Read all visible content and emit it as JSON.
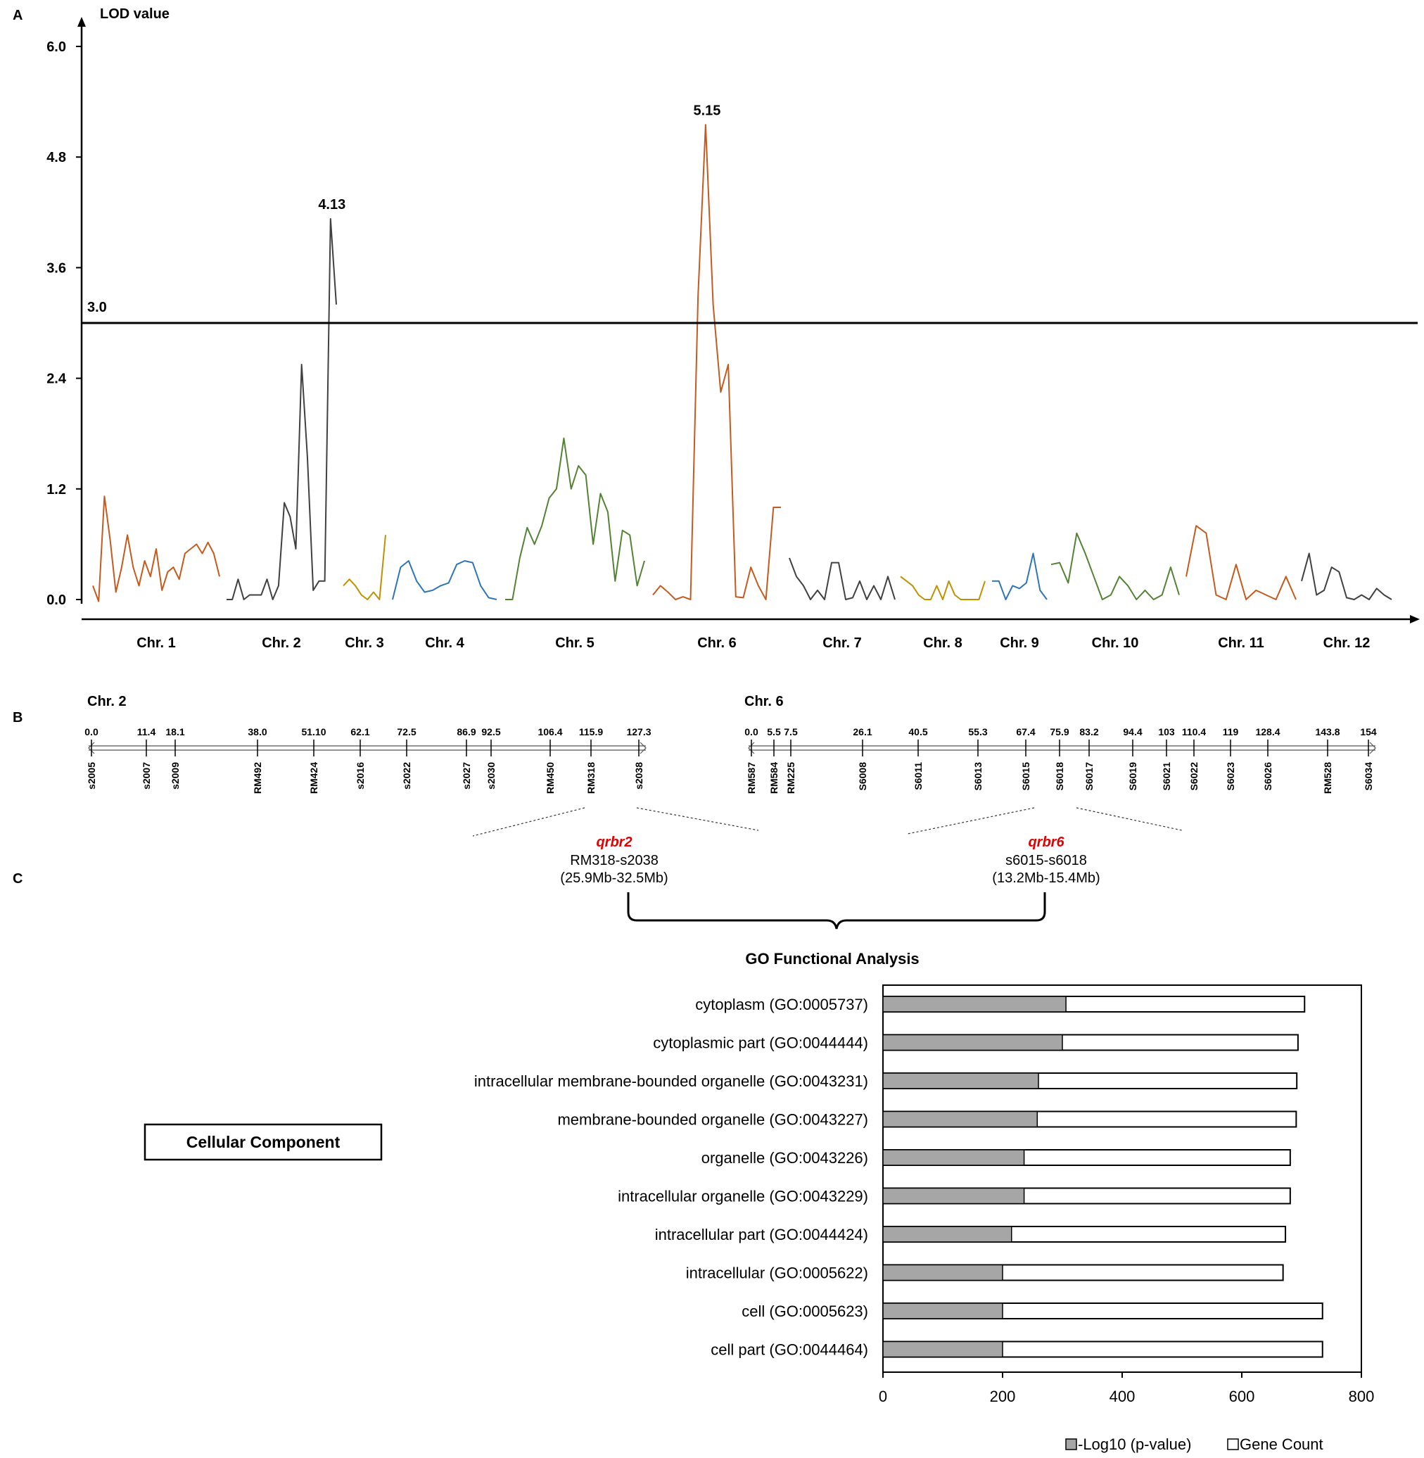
{
  "colors": {
    "orange": "#c55a1e",
    "grey": "#404040",
    "gold": "#bf9000",
    "blue": "#2e75b6",
    "green": "#548235",
    "red": "#e00000",
    "bar_fill": "#a6a6a6"
  },
  "panel_labels": {
    "a": "A",
    "b": "B",
    "c": "C"
  },
  "chart_data": [
    {
      "type": "line",
      "title": "",
      "ylabel": "LOD value",
      "ylim": [
        0,
        6.6
      ],
      "yticks": [
        "6.0",
        "4.8",
        "3.6",
        "2.4",
        "1.2",
        "0.0"
      ],
      "threshold": {
        "value": 3.0,
        "label": "3.0"
      },
      "peaks": [
        {
          "chromosome": "Chr. 2",
          "value": 4.13,
          "label": "4.13"
        },
        {
          "chromosome": "Chr. 6",
          "value": 5.15,
          "label": "5.15"
        }
      ],
      "chromosomes": [
        {
          "name": "Chr. 1",
          "color": "orange",
          "values": [
            0.15,
            -0.02,
            1.12,
            0.65,
            0.08,
            0.35,
            0.7,
            0.35,
            0.15,
            0.42,
            0.25,
            0.55,
            0.1,
            0.3,
            0.35,
            0.22,
            0.5,
            0.55,
            0.6,
            0.5,
            0.62,
            0.5,
            0.25
          ]
        },
        {
          "name": "Chr. 2",
          "color": "grey",
          "values": [
            0.0,
            0.0,
            0.22,
            0.0,
            0.05,
            0.05,
            0.05,
            0.22,
            0.0,
            0.15,
            1.05,
            0.9,
            0.55,
            2.55,
            1.55,
            0.1,
            0.2,
            0.2,
            4.13,
            3.2
          ]
        },
        {
          "name": "Chr. 3",
          "color": "gold",
          "values": [
            0.15,
            0.22,
            0.15,
            0.05,
            0.0,
            0.08,
            0.0,
            0.7
          ]
        },
        {
          "name": "Chr. 4",
          "color": "blue",
          "values": [
            0.0,
            0.35,
            0.42,
            0.2,
            0.08,
            0.1,
            0.15,
            0.18,
            0.38,
            0.42,
            0.4,
            0.15,
            0.02,
            0.0
          ]
        },
        {
          "name": "Chr. 5",
          "color": "green",
          "values": [
            0.0,
            0.0,
            0.45,
            0.78,
            0.6,
            0.8,
            1.1,
            1.2,
            1.75,
            1.2,
            1.45,
            1.35,
            0.6,
            1.15,
            0.95,
            0.2,
            0.75,
            0.7,
            0.15,
            0.42
          ]
        },
        {
          "name": "Chr. 6",
          "color": "orange",
          "values": [
            0.05,
            0.15,
            0.08,
            0.0,
            0.03,
            0.0,
            3.3,
            5.15,
            3.2,
            2.25,
            2.55,
            0.03,
            0.02,
            0.35,
            0.15,
            0.0,
            1.0,
            1.0
          ]
        },
        {
          "name": "Chr. 7",
          "color": "grey",
          "values": [
            0.45,
            0.25,
            0.15,
            0.0,
            0.1,
            0.0,
            0.4,
            0.4,
            0.0,
            0.02,
            0.2,
            0.0,
            0.15,
            0.0,
            0.25,
            0.0
          ]
        },
        {
          "name": "Chr. 8",
          "color": "gold",
          "values": [
            0.25,
            0.2,
            0.15,
            0.05,
            0.0,
            0.0,
            0.15,
            0.0,
            0.2,
            0.05,
            0.0,
            0.0,
            0.0,
            0.0,
            0.2
          ]
        },
        {
          "name": "Chr. 9",
          "color": "blue",
          "values": [
            0.2,
            0.2,
            0.0,
            0.15,
            0.12,
            0.18,
            0.5,
            0.1,
            0.0
          ]
        },
        {
          "name": "Chr. 10",
          "color": "green",
          "values": [
            0.38,
            0.4,
            0.18,
            0.72,
            0.5,
            0.25,
            0.0,
            0.05,
            0.25,
            0.15,
            0.0,
            0.1,
            0.0,
            0.05,
            0.35,
            0.05
          ]
        },
        {
          "name": "Chr. 11",
          "color": "orange",
          "values": [
            0.25,
            0.8,
            0.72,
            0.05,
            0.0,
            0.38,
            0.0,
            0.1,
            0.05,
            0.0,
            0.25,
            0.0
          ]
        },
        {
          "name": "Chr. 12",
          "color": "grey",
          "values": [
            0.2,
            0.5,
            0.05,
            0.1,
            0.35,
            0.3,
            0.02,
            0.0,
            0.05,
            0.0,
            0.12,
            0.05,
            0.0
          ]
        }
      ]
    },
    {
      "type": "bar",
      "title": "GO Functional Analysis",
      "category_group": "Cellular Component",
      "xlim": [
        0,
        800
      ],
      "xticks": [
        "0",
        "200",
        "400",
        "600",
        "800"
      ],
      "categories": [
        "cytoplasm (GO:0005737)",
        "cytoplasmic part (GO:0044444)",
        "intracellular membrane-bounded organelle (GO:0043231)",
        "membrane-bounded organelle (GO:0043227)",
        "organelle (GO:0043226)",
        "intracellular organelle (GO:0043229)",
        "intracellular part (GO:0044424)",
        "intracellular (GO:0005622)",
        "cell (GO:0005623)",
        "cell part (GO:0044464)"
      ],
      "series": [
        {
          "name": "-Log10 (p-value)",
          "values": [
            306,
            300,
            260,
            258,
            236,
            236,
            215,
            200,
            200,
            200
          ]
        },
        {
          "name": "Gene Count",
          "values": [
            705,
            694,
            692,
            691,
            681,
            681,
            673,
            669,
            735,
            735
          ]
        }
      ]
    }
  ],
  "genetic_maps": [
    {
      "title": "Chr. 2",
      "positions": [
        "0.0",
        "11.4",
        "18.1",
        "38.0",
        "51.10",
        "62.1",
        "72.5",
        "86.9",
        "92.5",
        "106.4",
        "115.9",
        "127.3"
      ],
      "markers": [
        "s2005",
        "s2007",
        "s2009",
        "RM492",
        "RM424",
        "s2016",
        "s2022",
        "s2027",
        "s2030",
        "RM450",
        "RM318",
        "s2038"
      ]
    },
    {
      "title": "Chr. 6",
      "positions": [
        "0.0",
        "5.5",
        "7.5",
        "26.1",
        "40.5",
        "55.3",
        "67.4",
        "75.9",
        "83.2",
        "94.4",
        "103",
        "110.4",
        "119",
        "128.4",
        "143.8",
        "154"
      ],
      "markers": [
        "RM587",
        "RM584",
        "RM225",
        "S6008",
        "S6011",
        "S6013",
        "S6015",
        "S6018",
        "S6017",
        "S6019",
        "S6021",
        "S6022",
        "S6023",
        "S6026",
        "RM528",
        "S6034"
      ]
    }
  ],
  "qtls": [
    {
      "name": "qrbr2",
      "interval": "RM318-s2038",
      "range": "(25.9Mb-32.5Mb)"
    },
    {
      "name": "qrbr6",
      "interval": "s6015-s6018",
      "range": "(13.2Mb-15.4Mb)"
    }
  ]
}
